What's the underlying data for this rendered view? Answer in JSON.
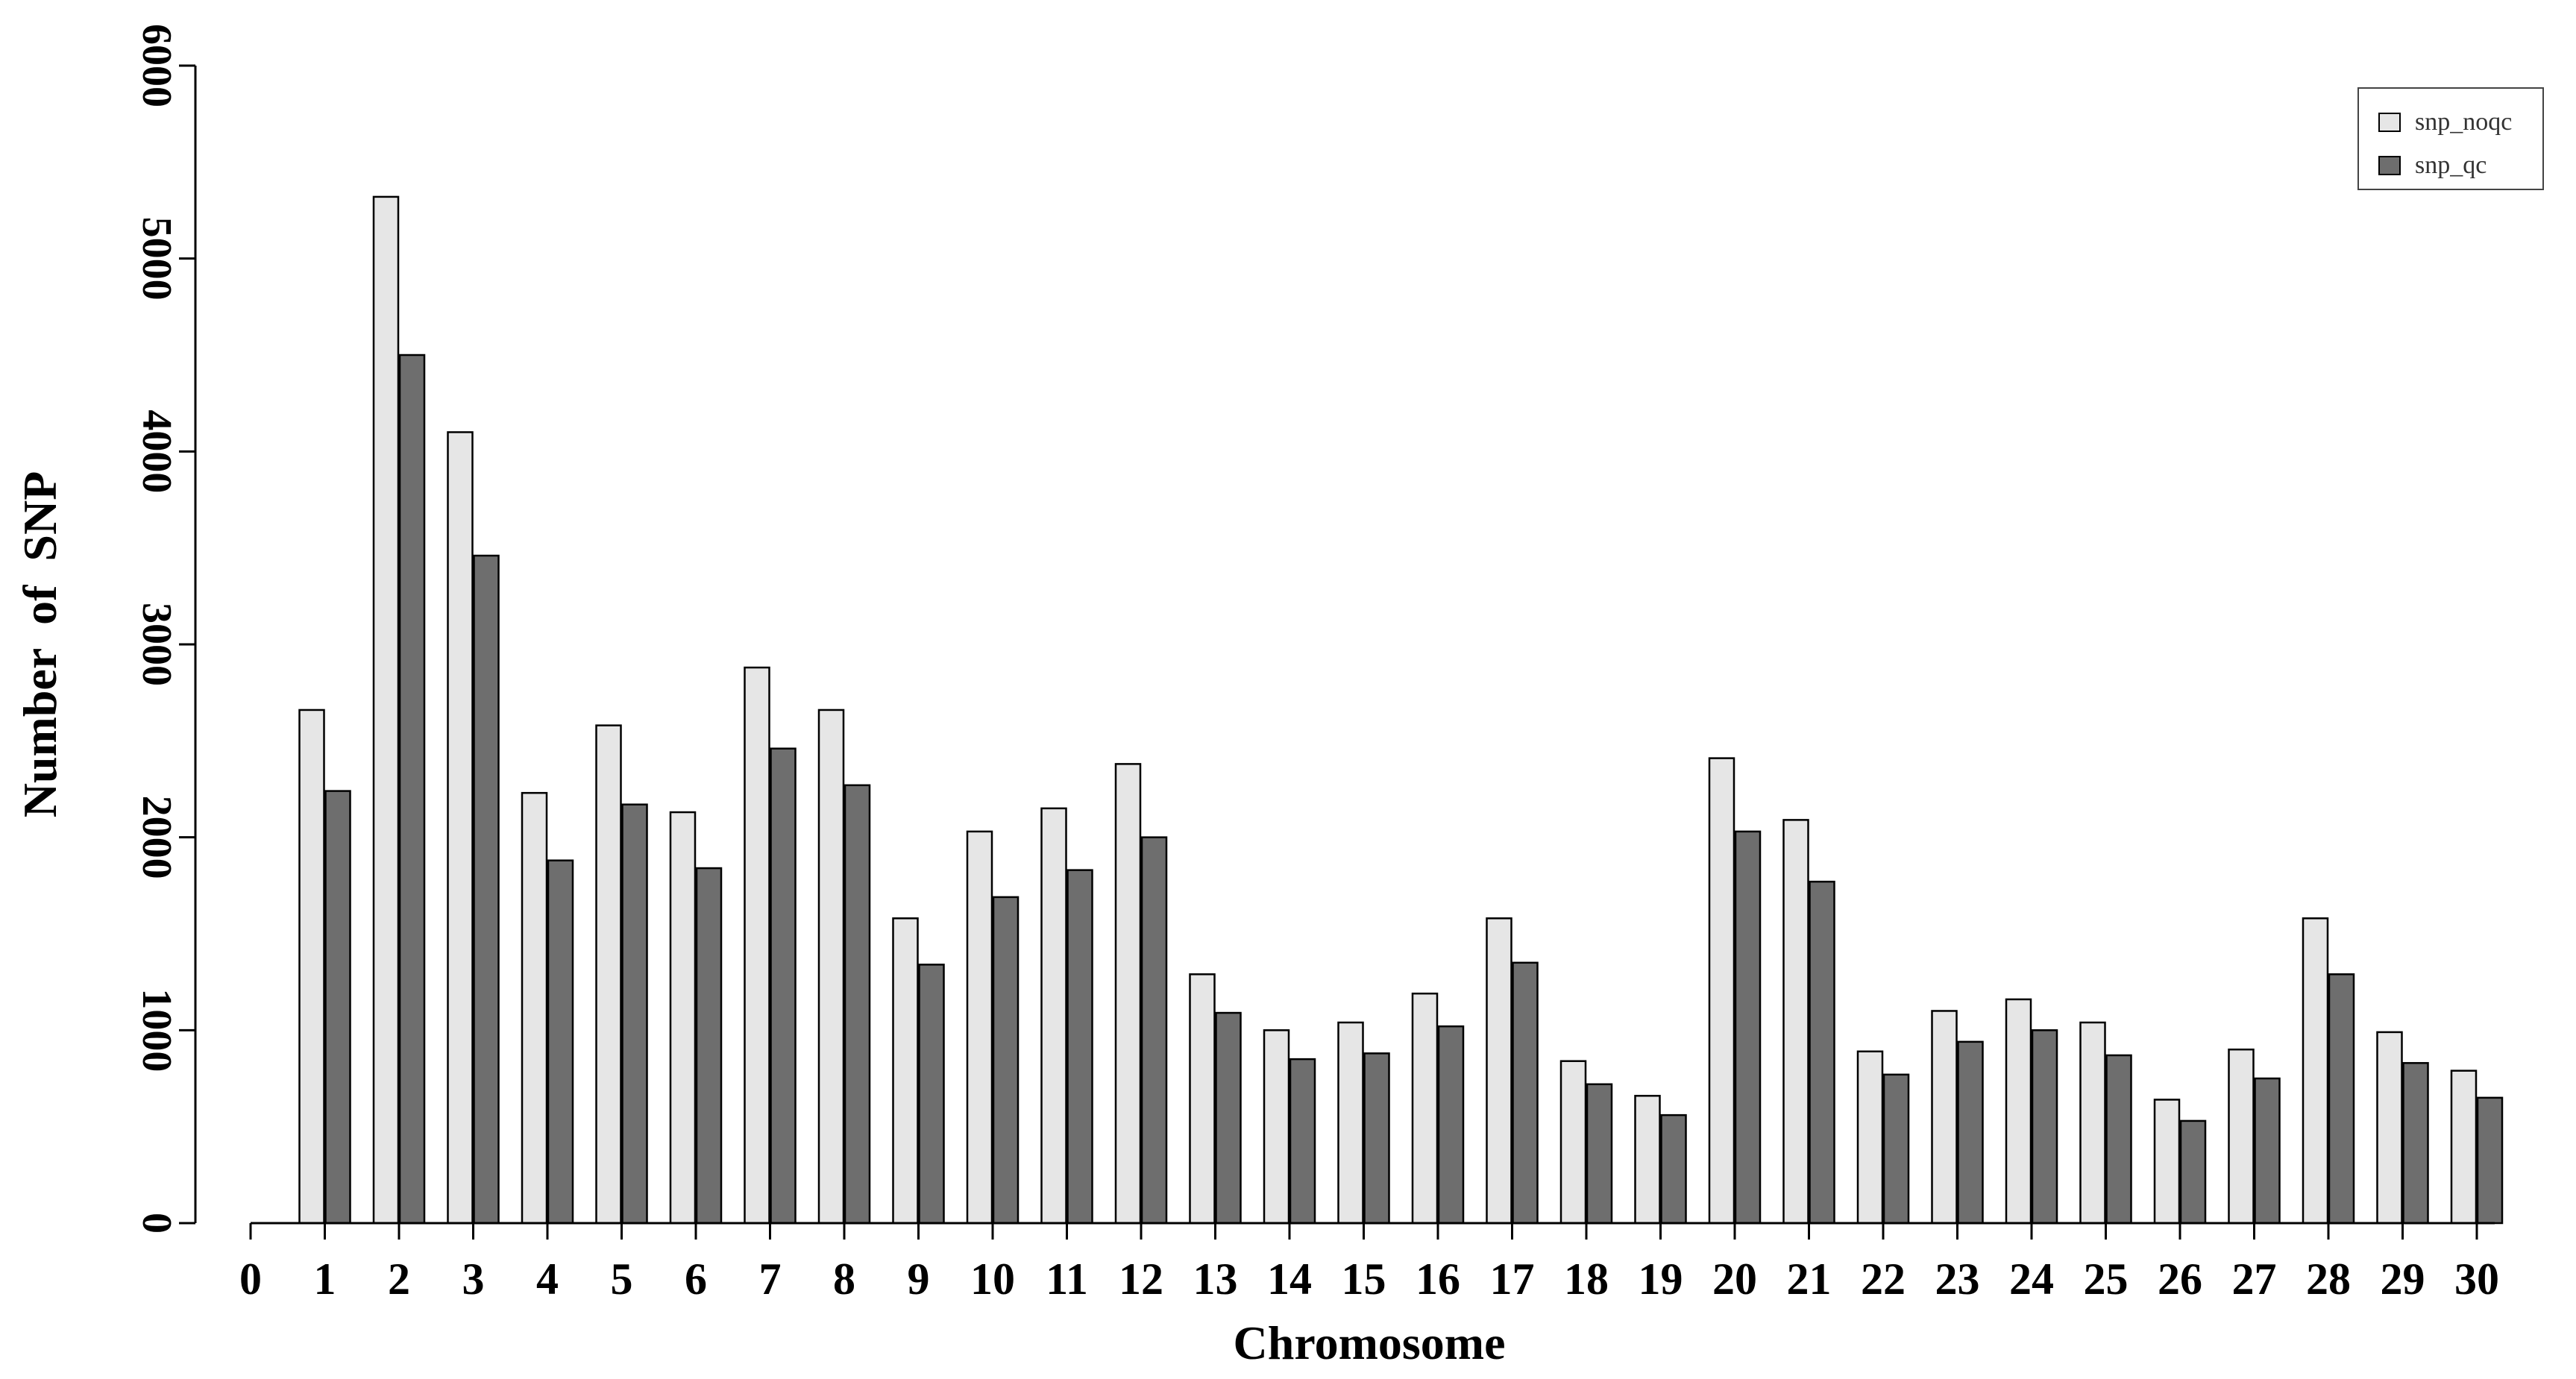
{
  "chart_data": {
    "type": "bar",
    "categories": [
      "1",
      "2",
      "3",
      "4",
      "5",
      "6",
      "7",
      "8",
      "9",
      "10",
      "11",
      "12",
      "13",
      "14",
      "15",
      "16",
      "17",
      "18",
      "19",
      "20",
      "21",
      "22",
      "23",
      "24",
      "25",
      "26",
      "27",
      "28",
      "29",
      "30"
    ],
    "x_axis_ticks": [
      "0",
      "1",
      "2",
      "3",
      "4",
      "5",
      "6",
      "7",
      "8",
      "9",
      "10",
      "11",
      "12",
      "13",
      "14",
      "15",
      "16",
      "17",
      "18",
      "19",
      "20",
      "21",
      "22",
      "23",
      "24",
      "25",
      "26",
      "27",
      "28",
      "29",
      "30"
    ],
    "series": [
      {
        "name": "snp_noqc",
        "color": "#e6e6e6",
        "values": [
          2660,
          5320,
          4100,
          2230,
          2580,
          2130,
          2880,
          2660,
          1580,
          2030,
          2150,
          2380,
          1290,
          1000,
          1040,
          1190,
          1580,
          840,
          660,
          2410,
          2090,
          890,
          1100,
          1160,
          1040,
          640,
          900,
          1580,
          990,
          790
        ]
      },
      {
        "name": "snp_qc",
        "color": "#6e6e6e",
        "values": [
          2240,
          4500,
          3460,
          1880,
          2170,
          1840,
          2460,
          2270,
          1340,
          1690,
          1830,
          2000,
          1090,
          850,
          880,
          1020,
          1350,
          720,
          560,
          2030,
          1770,
          770,
          940,
          1000,
          870,
          530,
          750,
          1290,
          830,
          650
        ]
      }
    ],
    "xlabel": "Chromosome",
    "ylabel": "Number  of  SNP",
    "ylim": [
      0,
      6000
    ],
    "yticks": [
      "0",
      "1000",
      "2000",
      "3000",
      "4000",
      "5000",
      "6000"
    ],
    "grid": false,
    "legend_position": "top-right"
  }
}
